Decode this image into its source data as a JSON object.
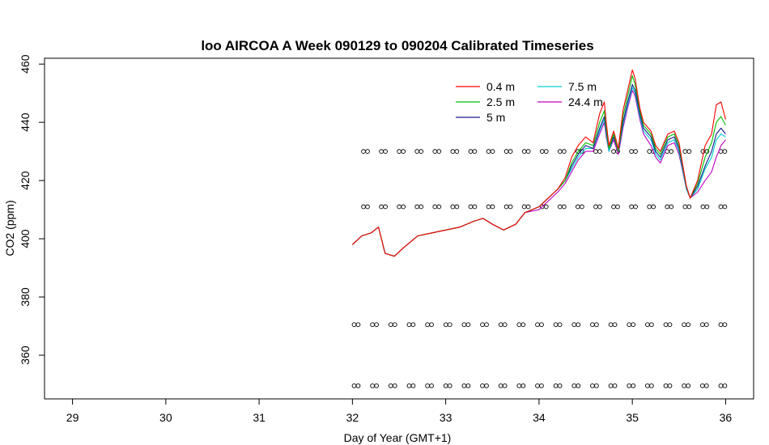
{
  "chart_data": {
    "type": "line",
    "title": "loo AIRCOA A  Week 090129 to 090204  Calibrated Timeseries",
    "xlabel": "Day of Year (GMT+1)",
    "ylabel": "CO2 (ppm)",
    "xlim": [
      28.7,
      36.3
    ],
    "ylim": [
      345,
      462
    ],
    "x_ticks": [
      29,
      30,
      31,
      32,
      33,
      34,
      35,
      36
    ],
    "y_ticks": [
      360,
      380,
      400,
      420,
      440,
      460
    ],
    "x_tick_labels": [
      "29",
      "30",
      "31",
      "32",
      "33",
      "34",
      "35",
      "36"
    ],
    "y_tick_labels": [
      "360",
      "380",
      "400",
      "420",
      "440",
      "460"
    ],
    "legend_placement": "top-right",
    "grid": false,
    "series": [
      {
        "name": "0.4 m",
        "color": "#ff0000",
        "x": [
          32.0,
          32.1,
          32.2,
          32.28,
          32.35,
          32.45,
          32.55,
          32.7,
          32.85,
          33.0,
          33.15,
          33.3,
          33.4,
          33.5,
          33.62,
          33.75,
          33.85,
          34.0,
          34.1,
          34.2,
          34.28,
          34.35,
          34.42,
          34.5,
          34.58,
          34.65,
          34.7,
          34.72,
          34.75,
          34.8,
          34.85,
          34.9,
          34.95,
          35.0,
          35.03,
          35.08,
          35.12,
          35.2,
          35.25,
          35.3,
          35.38,
          35.45,
          35.5,
          35.58,
          35.62,
          35.7,
          35.78,
          35.85,
          35.9,
          35.95,
          36.0
        ],
        "y": [
          398,
          401,
          402,
          404,
          395,
          394,
          397,
          401,
          402,
          403,
          404,
          406,
          407,
          405,
          403,
          405,
          409,
          411,
          414,
          417,
          421,
          428,
          432,
          435,
          433,
          443,
          447,
          440,
          432,
          437,
          431,
          444,
          451,
          458,
          455,
          445,
          440,
          437,
          432,
          430,
          436,
          437,
          433,
          418,
          414,
          420,
          432,
          436,
          446,
          447,
          441
        ]
      },
      {
        "name": "2.5 m",
        "color": "#00c000",
        "x": [
          32.0,
          32.1,
          32.2,
          32.28,
          32.35,
          32.45,
          32.55,
          32.7,
          32.85,
          33.0,
          33.15,
          33.3,
          33.4,
          33.5,
          33.62,
          33.75,
          33.85,
          34.0,
          34.1,
          34.2,
          34.28,
          34.35,
          34.42,
          34.5,
          34.58,
          34.65,
          34.7,
          34.72,
          34.75,
          34.8,
          34.85,
          34.9,
          34.95,
          35.0,
          35.03,
          35.08,
          35.12,
          35.2,
          35.25,
          35.3,
          35.38,
          35.45,
          35.5,
          35.58,
          35.62,
          35.7,
          35.78,
          35.85,
          35.9,
          35.95,
          36.0
        ],
        "y": [
          398,
          401,
          402,
          404,
          395,
          394,
          397,
          401,
          402,
          403,
          404,
          406,
          407,
          405,
          403,
          405,
          409,
          411,
          414,
          417,
          420,
          426,
          430,
          433,
          432,
          440,
          444,
          438,
          431,
          436,
          430,
          442,
          449,
          456,
          453,
          444,
          439,
          436,
          431,
          429,
          435,
          436,
          432,
          418,
          414,
          419,
          428,
          433,
          440,
          442,
          439
        ]
      },
      {
        "name": "5 m",
        "color": "#1a1a8c",
        "x": [
          32.0,
          32.1,
          32.2,
          32.28,
          32.35,
          32.45,
          32.55,
          32.7,
          32.85,
          33.0,
          33.15,
          33.3,
          33.4,
          33.5,
          33.62,
          33.75,
          33.85,
          34.0,
          34.1,
          34.2,
          34.28,
          34.35,
          34.42,
          34.5,
          34.58,
          34.65,
          34.7,
          34.72,
          34.75,
          34.8,
          34.85,
          34.9,
          34.95,
          35.0,
          35.03,
          35.08,
          35.12,
          35.2,
          35.25,
          35.3,
          35.38,
          35.45,
          35.5,
          35.58,
          35.62,
          35.7,
          35.78,
          35.85,
          35.9,
          35.95,
          36.0
        ],
        "y": [
          398,
          401,
          402,
          404,
          395,
          394,
          397,
          401,
          402,
          403,
          404,
          406,
          407,
          405,
          403,
          405,
          409,
          411,
          414,
          417,
          420,
          425,
          429,
          432,
          431,
          438,
          442,
          437,
          431,
          435,
          430,
          440,
          447,
          453,
          451,
          443,
          438,
          435,
          430,
          428,
          434,
          435,
          431,
          418,
          414,
          418,
          425,
          430,
          436,
          438,
          436
        ]
      },
      {
        "name": "7.5 m",
        "color": "#00d0d0",
        "x": [
          32.0,
          32.1,
          32.2,
          32.28,
          32.35,
          32.45,
          32.55,
          32.7,
          32.85,
          33.0,
          33.15,
          33.3,
          33.4,
          33.5,
          33.62,
          33.75,
          33.85,
          34.0,
          34.1,
          34.2,
          34.28,
          34.35,
          34.42,
          34.5,
          34.58,
          34.65,
          34.7,
          34.72,
          34.75,
          34.8,
          34.85,
          34.9,
          34.95,
          35.0,
          35.03,
          35.08,
          35.12,
          35.2,
          35.25,
          35.3,
          35.38,
          35.45,
          35.5,
          35.58,
          35.62,
          35.7,
          35.78,
          35.85,
          35.9,
          35.95,
          36.0
        ],
        "y": [
          398,
          401,
          402,
          404,
          395,
          394,
          397,
          401,
          402,
          403,
          404,
          406,
          407,
          405,
          403,
          405,
          409,
          411,
          414,
          417,
          420,
          424,
          428,
          431,
          431,
          437,
          441,
          436,
          430,
          435,
          430,
          439,
          446,
          452,
          450,
          442,
          437,
          434,
          429,
          427,
          433,
          434,
          430,
          417,
          414,
          417,
          424,
          428,
          434,
          436,
          435
        ]
      },
      {
        "name": "24.4 m",
        "color": "#c000c0",
        "x": [
          32.0,
          32.1,
          32.2,
          32.28,
          32.35,
          32.45,
          32.55,
          32.7,
          32.85,
          33.0,
          33.15,
          33.3,
          33.4,
          33.5,
          33.62,
          33.75,
          33.85,
          34.0,
          34.1,
          34.2,
          34.28,
          34.35,
          34.42,
          34.5,
          34.58,
          34.65,
          34.7,
          34.72,
          34.75,
          34.8,
          34.85,
          34.9,
          34.95,
          35.0,
          35.03,
          35.08,
          35.12,
          35.2,
          35.25,
          35.3,
          35.38,
          35.45,
          35.5,
          35.58,
          35.62,
          35.7,
          35.78,
          35.85,
          35.9,
          35.95,
          36.0
        ],
        "y": [
          398,
          401,
          402,
          404,
          395,
          394,
          397,
          401,
          402,
          403,
          404,
          406,
          407,
          405,
          403,
          405,
          409,
          410,
          413,
          416,
          419,
          423,
          427,
          430,
          430,
          436,
          440,
          435,
          430,
          434,
          429,
          438,
          445,
          451,
          449,
          441,
          436,
          432,
          428,
          426,
          432,
          433,
          429,
          417,
          414,
          416,
          420,
          423,
          428,
          432,
          434
        ]
      }
    ],
    "marker_rows": [
      {
        "y": 430,
        "x_start": 32.14,
        "x_end": 35.97,
        "count": 21
      },
      {
        "y": 411,
        "x_start": 32.14,
        "x_end": 35.97,
        "count": 21
      },
      {
        "y": 370.5,
        "x_start": 32.04,
        "x_end": 35.97,
        "count": 21
      },
      {
        "y": 349.5,
        "x_start": 32.04,
        "x_end": 35.97,
        "count": 21
      }
    ]
  }
}
